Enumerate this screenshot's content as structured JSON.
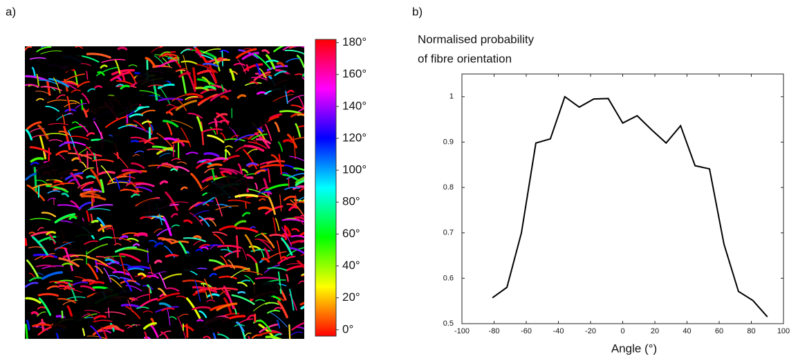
{
  "chart_data": [
    {
      "type": "image",
      "panel_label": "a)",
      "colorbar": {
        "colors": [
          "#ff0000",
          "#ffff00",
          "#00ff00",
          "#00ffff",
          "#0000ff",
          "#ff00ff",
          "#ff0000"
        ],
        "lim": [
          -4,
          182
        ],
        "ticks": [
          {
            "value": 0,
            "label": "0°"
          },
          {
            "value": 20,
            "label": "20°"
          },
          {
            "value": 40,
            "label": "40°"
          },
          {
            "value": 60,
            "label": "60°"
          },
          {
            "value": 80,
            "label": "80°"
          },
          {
            "value": 100,
            "label": "100°"
          },
          {
            "value": 120,
            "label": "120°"
          },
          {
            "value": 140,
            "label": "140°"
          },
          {
            "value": 160,
            "label": "160°"
          },
          {
            "value": 180,
            "label": "180°"
          }
        ]
      }
    },
    {
      "type": "line",
      "panel_label": "b)",
      "ylabel": [
        "Normalised probability",
        "of fibre orientation"
      ],
      "xlabel": "Angle (°)",
      "x": [
        -81,
        -72,
        -63,
        -54,
        -45,
        -36,
        -27,
        -18,
        -9,
        0,
        9,
        18,
        27,
        36,
        45,
        54,
        63,
        72,
        81,
        90
      ],
      "values": [
        0.557,
        0.58,
        0.7,
        0.898,
        0.907,
        1.0,
        0.977,
        0.995,
        0.996,
        0.942,
        0.958,
        0.927,
        0.898,
        0.936,
        0.848,
        0.841,
        0.675,
        0.571,
        0.551,
        0.515
      ],
      "color": "#000000",
      "xlim": [
        -100,
        100
      ],
      "xticks": [
        -100,
        -80,
        -60,
        -40,
        -20,
        0,
        20,
        40,
        60,
        80,
        100
      ],
      "ylim": [
        0.5,
        1.05
      ],
      "yticks": [
        0.5,
        0.6,
        0.7,
        0.8,
        0.9,
        1
      ]
    }
  ]
}
